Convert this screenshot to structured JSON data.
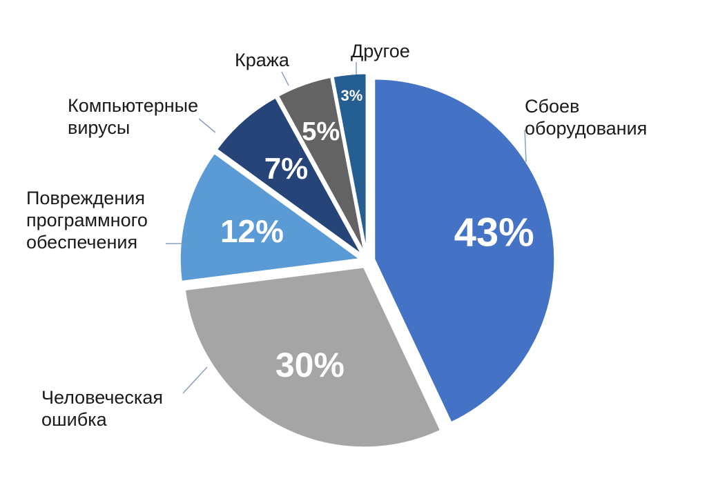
{
  "chart_data": {
    "type": "pie",
    "title": "",
    "slices": [
      {
        "label": [
          "Сбоев",
          "оборудования"
        ],
        "value": 43,
        "value_label": "43%",
        "color": "#4472c4"
      },
      {
        "label": [
          "Человеческая",
          "ошибка"
        ],
        "value": 30,
        "value_label": "30%",
        "color": "#a5a5a5"
      },
      {
        "label": [
          "Повреждения",
          "программного",
          "обеспечения"
        ],
        "value": 12,
        "value_label": "12%",
        "color": "#5b9bd5"
      },
      {
        "label": [
          "Компьютерные",
          "вирусы"
        ],
        "value": 7,
        "value_label": "7%",
        "color": "#264478"
      },
      {
        "label": [
          "Кража"
        ],
        "value": 5,
        "value_label": "5%",
        "color": "#636363"
      },
      {
        "label": [
          "Другое"
        ],
        "value": 3,
        "value_label": "3%",
        "color": "#255e91"
      }
    ],
    "start_angle_deg": 0,
    "direction": "clockwise",
    "exploded": true,
    "legend": "none"
  }
}
